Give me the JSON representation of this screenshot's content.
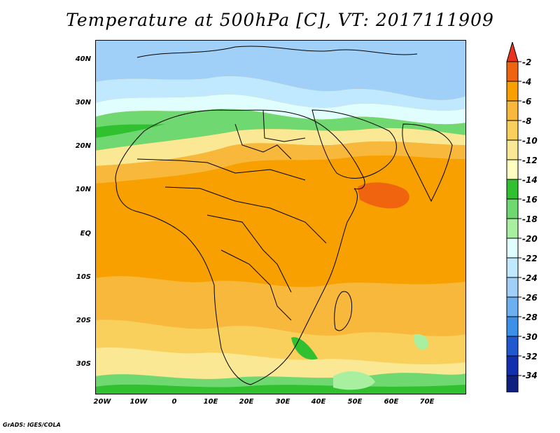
{
  "title": "Temperature at 500hPa [C], VT: 2017111909",
  "footer": "GrADS: IGES/COLA",
  "map": {
    "lat_labels": [
      "40N",
      "30N",
      "20N",
      "10N",
      "EQ",
      "10S",
      "20S",
      "30S"
    ],
    "lon_labels": [
      "20W",
      "10W",
      "0",
      "10E",
      "20E",
      "30E",
      "40E",
      "50E",
      "60E",
      "70E"
    ]
  },
  "colorbar": {
    "labels": [
      "-2",
      "-4",
      "-6",
      "-8",
      "-10",
      "-12",
      "-14",
      "-16",
      "-18",
      "-20",
      "-22",
      "-24",
      "-26",
      "-28",
      "-30",
      "-32",
      "-34"
    ],
    "colors": [
      "#e8341c",
      "#f06410",
      "#f7a000",
      "#f7b83c",
      "#f9d05c",
      "#fbe894",
      "#fefec0",
      "#30c030",
      "#70d870",
      "#a8f0a0",
      "#e0fefe",
      "#c0e8fe",
      "#a0d0f8",
      "#6cb0f0",
      "#3c90e8",
      "#2058d0",
      "#1030b0",
      "#102080",
      "#e0e0f8"
    ]
  }
}
